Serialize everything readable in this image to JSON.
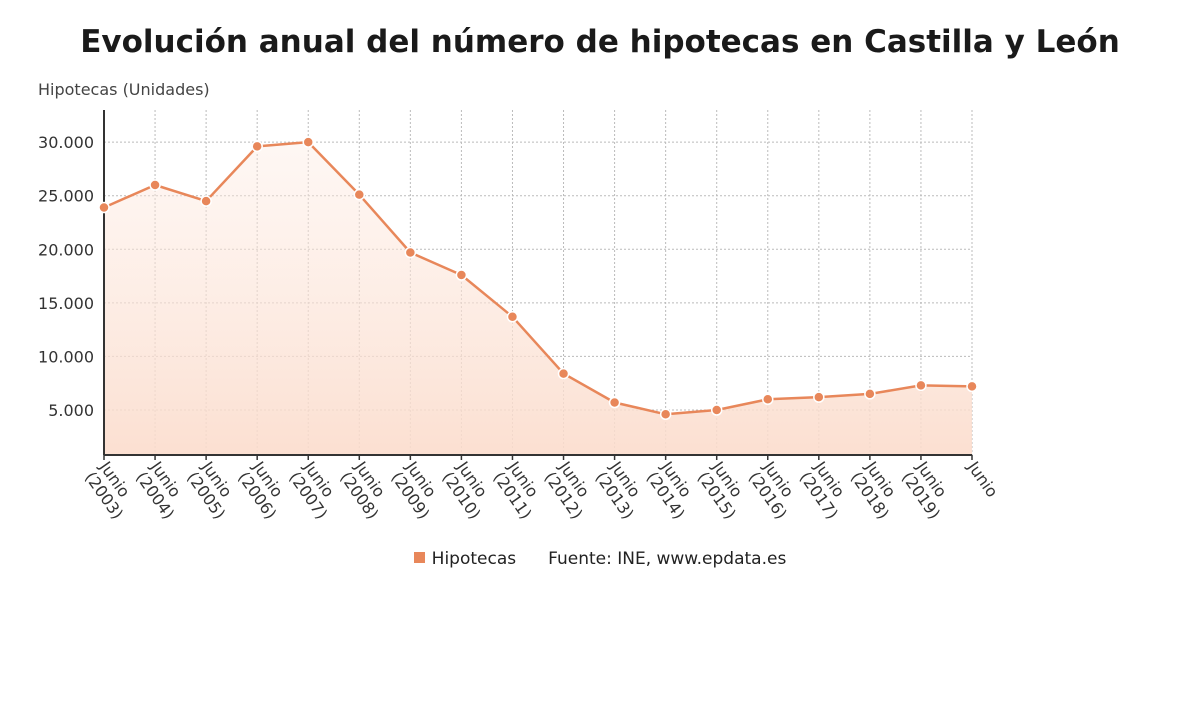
{
  "chart_data": {
    "type": "area",
    "title": "Evolución anual del número de hipotecas en Castilla y León",
    "ylabel": "Hipotecas (Unidades)",
    "xlabel": "",
    "categories": [
      "Junio (2003)",
      "Junio (2004)",
      "Junio (2005)",
      "Junio (2006)",
      "Junio (2007)",
      "Junio (2008)",
      "Junio (2009)",
      "Junio (2010)",
      "Junio (2011)",
      "Junio (2012)",
      "Junio (2013)",
      "Junio (2014)",
      "Junio (2015)",
      "Junio (2016)",
      "Junio (2017)",
      "Junio (2018)",
      "Junio (2019)",
      "Junio"
    ],
    "series": [
      {
        "name": "Hipotecas",
        "values": [
          23900,
          26000,
          24500,
          29600,
          30000,
          25100,
          19700,
          17600,
          13700,
          8400,
          5700,
          4600,
          5000,
          6000,
          6200,
          6500,
          7300,
          7200
        ]
      }
    ],
    "ylim": [
      800,
      33000
    ],
    "yticks": [
      5000,
      10000,
      15000,
      20000,
      25000,
      30000
    ],
    "ytick_labels": [
      "5.000",
      "10.000",
      "15.000",
      "20.000",
      "25.000",
      "30.000"
    ],
    "grid": true,
    "legend_position": "bottom",
    "source": "Fuente: INE, www.epdata.es"
  },
  "colors": {
    "line": "#e8875a",
    "fill": "#fbe1d4",
    "grid": "#bbbbbb",
    "axis": "#333333"
  }
}
